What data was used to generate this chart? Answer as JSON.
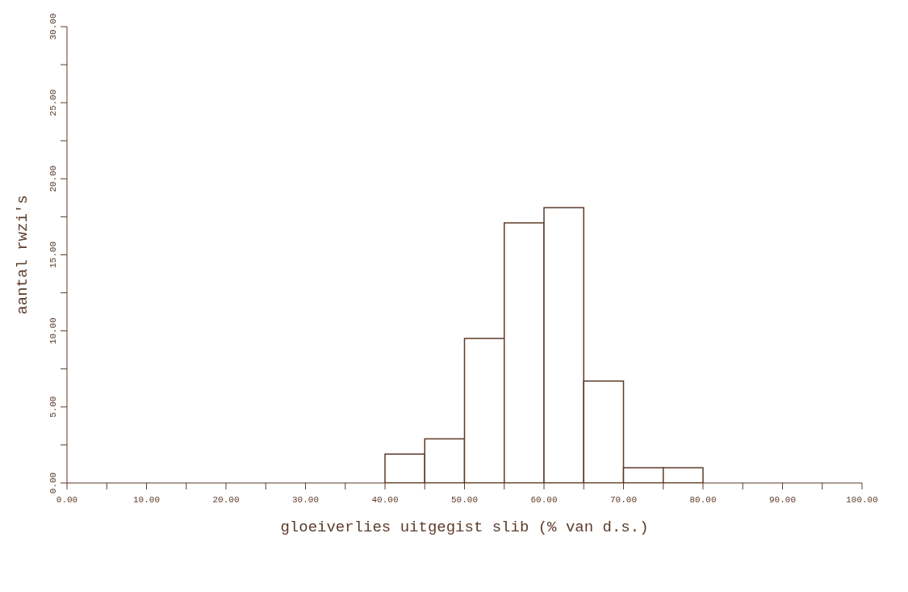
{
  "chart_data": {
    "type": "histogram",
    "xlabel": "gloeiverlies uitgegist slib (% van d.s.)",
    "ylabel": "aantal rwzi's",
    "color": "#5b3b2a",
    "bins": [
      40,
      45,
      50,
      55,
      60,
      65,
      70,
      75,
      80
    ],
    "values": [
      1.9,
      2.9,
      9.5,
      17.1,
      18.1,
      6.7,
      1,
      1
    ],
    "xlim": [
      0,
      100
    ],
    "xticks": [
      {
        "value": 0,
        "label": "0.00"
      },
      {
        "value": 5,
        "label": null
      },
      {
        "value": 10,
        "label": "10.00"
      },
      {
        "value": 15,
        "label": null
      },
      {
        "value": 20,
        "label": "20.00"
      },
      {
        "value": 25,
        "label": null
      },
      {
        "value": 30,
        "label": "30.00"
      },
      {
        "value": 35,
        "label": null
      },
      {
        "value": 40,
        "label": "40.00"
      },
      {
        "value": 45,
        "label": null
      },
      {
        "value": 50,
        "label": "50.00"
      },
      {
        "value": 55,
        "label": null
      },
      {
        "value": 60,
        "label": "60.00"
      },
      {
        "value": 65,
        "label": null
      },
      {
        "value": 70,
        "label": "70.00"
      },
      {
        "value": 75,
        "label": null
      },
      {
        "value": 80,
        "label": "80.00"
      },
      {
        "value": 85,
        "label": null
      },
      {
        "value": 90,
        "label": "90.00"
      },
      {
        "value": 95,
        "label": null
      },
      {
        "value": 100,
        "label": "100.00"
      }
    ],
    "ylim": [
      0,
      30
    ],
    "yticks": [
      {
        "value": 0,
        "label": "0.00"
      },
      {
        "value": 2.5,
        "label": null
      },
      {
        "value": 5,
        "label": "5.00"
      },
      {
        "value": 7.5,
        "label": null
      },
      {
        "value": 10,
        "label": "10.00"
      },
      {
        "value": 12.5,
        "label": null
      },
      {
        "value": 15,
        "label": "15.00"
      },
      {
        "value": 17.5,
        "label": null
      },
      {
        "value": 20,
        "label": "20.00"
      },
      {
        "value": 22.5,
        "label": null
      },
      {
        "value": 25,
        "label": "25.00"
      },
      {
        "value": 27.5,
        "label": null
      },
      {
        "value": 30,
        "label": "30.00"
      }
    ],
    "grid": false,
    "legend": false
  }
}
